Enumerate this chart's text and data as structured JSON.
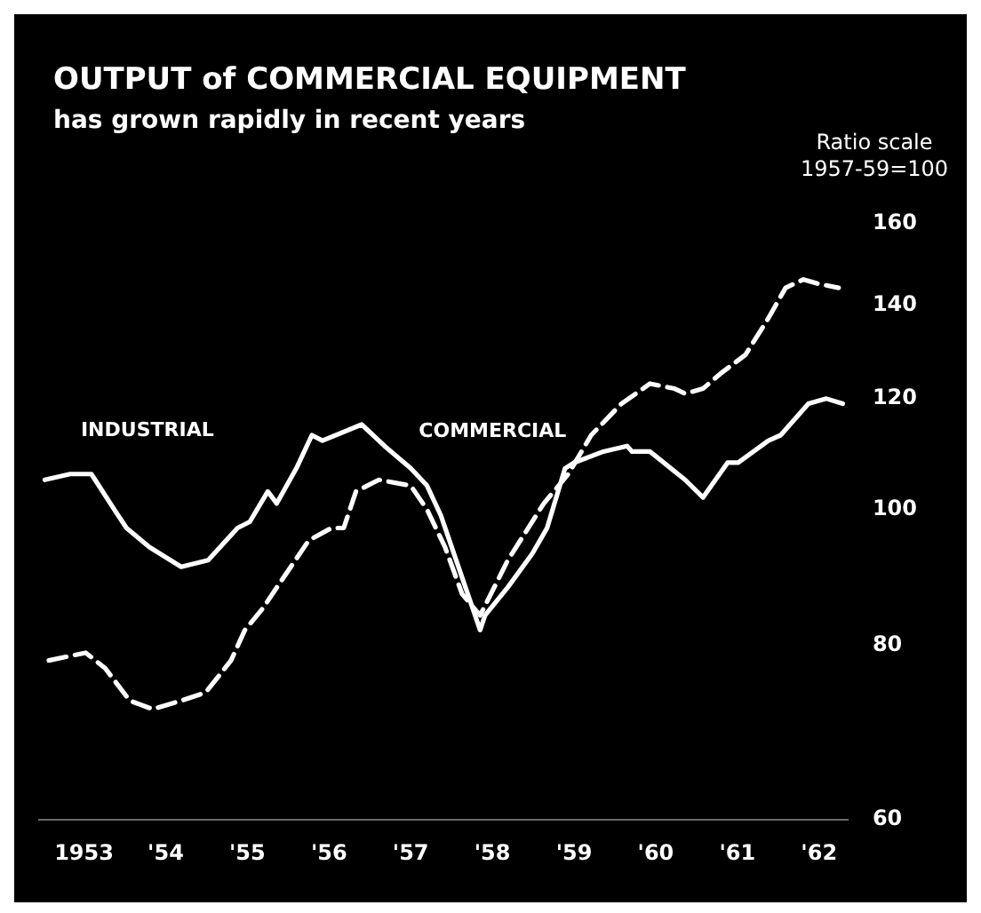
{
  "chart_data": {
    "type": "line",
    "title": "OUTPUT of COMMERCIAL EQUIPMENT",
    "subtitle": "has grown rapidly in recent years",
    "ylabel": "Ratio scale 1957-59=100",
    "log": true,
    "legend": false,
    "xlim": [
      1952.45,
      1962.35
    ],
    "xticks": [
      1953,
      {
        "value": 1954,
        "label": "'54"
      },
      {
        "value": 1955,
        "label": "'55"
      },
      {
        "value": 1956,
        "label": "'56"
      },
      {
        "value": 1957,
        "label": "'57"
      },
      {
        "value": 1958,
        "label": "'58"
      },
      {
        "value": 1959,
        "label": "'59"
      },
      {
        "value": 1960,
        "label": "'60"
      },
      {
        "value": 1961,
        "label": "'61"
      },
      {
        "value": 1962,
        "label": "'62"
      }
    ],
    "ylim": [
      60,
      160
    ],
    "yticks": [
      60,
      80,
      100,
      120,
      140,
      160
    ],
    "series": [
      {
        "name": "INDUSTRIAL",
        "color": "#ffffff",
        "line_style": "solid",
        "x": [
          1952.52,
          1952.83,
          1953.09,
          1953.37,
          1953.52,
          1953.8,
          1954.19,
          1954.52,
          1954.88,
          1955.03,
          1955.25,
          1955.36,
          1955.6,
          1955.79,
          1955.92,
          1956.4,
          1956.68,
          1957.0,
          1957.2,
          1957.37,
          1957.85,
          1957.91,
          1958.19,
          1958.49,
          1958.67,
          1958.89,
          1959.0,
          1959.36,
          1959.65,
          1959.71,
          1959.93,
          1960.36,
          1960.58,
          1960.88,
          1961.01,
          1961.38,
          1961.53,
          1961.87,
          1962.09,
          1962.29
        ],
        "values": [
          105,
          106,
          106,
          100,
          97,
          94,
          91,
          92,
          97,
          98,
          103,
          101,
          107,
          113,
          112,
          115,
          111,
          107,
          104,
          99,
          82,
          84,
          88,
          93,
          97,
          107,
          108,
          110,
          111,
          110,
          110,
          105,
          102,
          108,
          108,
          112,
          113,
          119,
          120,
          119
        ]
      },
      {
        "name": "COMMERCIAL",
        "color": "#ffffff",
        "line_style": "dashed",
        "x": [
          1952.57,
          1953.02,
          1953.26,
          1953.56,
          1953.84,
          1954.19,
          1954.49,
          1954.8,
          1954.97,
          1955.19,
          1955.42,
          1955.75,
          1956.03,
          1956.18,
          1956.33,
          1956.61,
          1957.0,
          1957.2,
          1957.42,
          1957.63,
          1957.85,
          1958.19,
          1958.63,
          1958.93,
          1959.21,
          1959.58,
          1959.93,
          1960.23,
          1960.36,
          1960.58,
          1960.79,
          1961.1,
          1961.38,
          1961.59,
          1961.81,
          1961.98,
          1962.24
        ],
        "values": [
          78,
          79,
          77,
          73,
          72,
          73,
          74,
          78,
          82,
          85,
          89,
          95,
          97,
          97,
          103,
          105,
          104,
          100,
          94,
          87,
          84,
          92,
          101,
          106,
          113,
          119,
          123,
          122,
          121,
          122,
          125,
          129,
          137,
          144,
          146,
          145,
          144
        ]
      }
    ]
  }
}
